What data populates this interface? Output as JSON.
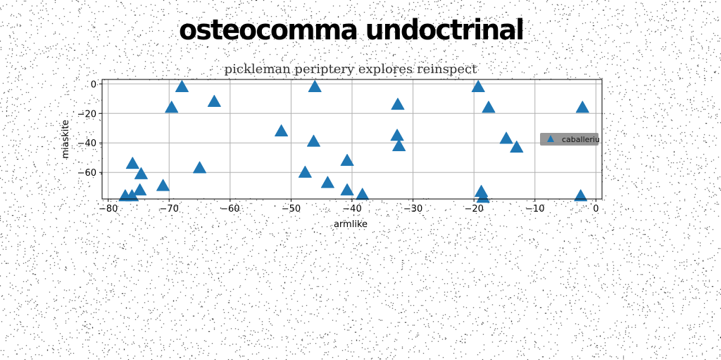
{
  "headline": "osteocomma undoctrinal",
  "chart_data": {
    "type": "scatter",
    "title": "pickleman periptery explores reinspect",
    "xlabel": "armlike",
    "ylabel": "miaskite",
    "xlim": [
      -81,
      1
    ],
    "ylim": [
      -78,
      3
    ],
    "xticks": [
      -80,
      -70,
      -60,
      -50,
      -40,
      -30,
      -20,
      -10,
      0
    ],
    "yticks": [
      0,
      -20,
      -40,
      -60
    ],
    "grid": true,
    "legend_position": "right",
    "series": [
      {
        "name": "caballeriu",
        "marker": "triangle",
        "color": "#1f77b4",
        "points": [
          [
            -67.9,
            -2
          ],
          [
            -46.1,
            -2
          ],
          [
            -19.3,
            -2
          ],
          [
            -69.6,
            -16
          ],
          [
            -62.6,
            -12
          ],
          [
            -32.5,
            -14
          ],
          [
            -17.6,
            -16
          ],
          [
            -2.2,
            -16
          ],
          [
            -51.6,
            -32
          ],
          [
            -32.6,
            -35
          ],
          [
            -32.3,
            -42
          ],
          [
            -46.3,
            -39
          ],
          [
            -14.7,
            -37
          ],
          [
            -13.0,
            -43
          ],
          [
            -76.0,
            -54
          ],
          [
            -74.6,
            -61
          ],
          [
            -65.0,
            -57
          ],
          [
            -47.7,
            -60
          ],
          [
            -40.8,
            -52
          ],
          [
            -71.0,
            -69
          ],
          [
            -74.8,
            -72
          ],
          [
            -77.2,
            -76
          ],
          [
            -76.1,
            -76
          ],
          [
            -44.0,
            -67
          ],
          [
            -40.8,
            -72
          ],
          [
            -38.3,
            -75
          ],
          [
            -18.8,
            -73
          ],
          [
            -18.5,
            -77
          ],
          [
            -2.5,
            -76
          ]
        ]
      }
    ]
  }
}
